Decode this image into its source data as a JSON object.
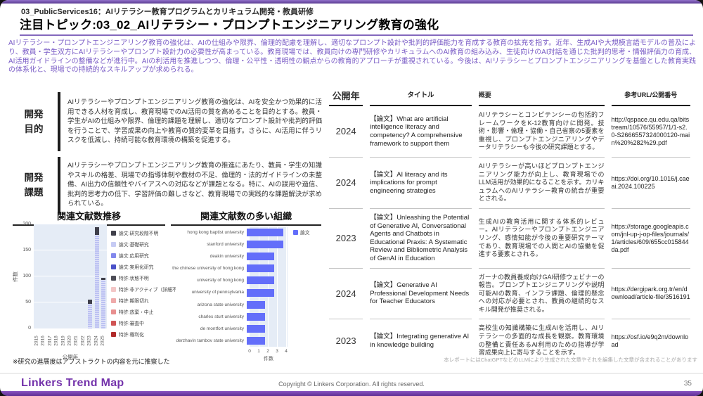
{
  "header": {
    "eyebrow": "03_PublicServices16：AIリテラシー教育プログラムとカリキュラム開発・教員研修",
    "title": "注目トピック:03_02_AIリテラシー・プロンプトエンジニアリング教育の強化"
  },
  "summary": "AIリテラシー・プロンプトエンジニアリング教育の強化は、AIの仕組みや限界、倫理的配慮を理解し、適切なプロンプト設計や批判的評価能力を育成する教育の拡充を指す。近年、生成AIや大規模言語モデルの普及により、教員・学生双方にAIリテラシーやプロンプト設計力の必要性が高まっている。教育現場では、教員向けの専門研修やカリキュラムへのAI教育の組み込み、生徒向けのAI対話を通じた批判的思考・情報評価力の育成、AI活用ガイドラインの整備などが進行中。AIの利活用を推進しつつ、倫理・公平性・透明性の観点からの教育的アプローチが重視されている。今後は、AIリテラシーとプロンプトエンジニアリングを基盤とした教育実践の体系化と、現場での持続的なスキルアップが求められる。",
  "dev_purpose": {
    "label_lines": [
      "開発",
      "目的"
    ],
    "text": "AIリテラシーやプロンプトエンジニアリング教育の強化は、AIを安全かつ効果的に活用できる人材を育成し、教育現場でのAI活用の質を高めることを目的とする。教員・学生がAIの仕組みや限界、倫理的課題を理解し、適切なプロンプト設計や批判的評価を行うことで、学習成果の向上や教育の質的変革を目指す。さらに、AI活用に伴うリスクを低減し、持続可能な教育環境の構築を促進する。"
  },
  "dev_issues": {
    "label_lines": [
      "開発",
      "課題"
    ],
    "text": "AIリテラシーやプロンプトエンジニアリング教育の推進にあたり、教員・学生の知識やスキルの格差、現場での指導体制や教材の不足、倫理的・法的ガイドラインの未整備、AI出力の信頼性やバイアスへの対応などが課題となる。特に、AIの誤用や過信、批判的思考力の低下、学習評価の難しさなど、教育現場での実践的な課題解決が求められている。"
  },
  "chart_data": [
    {
      "type": "bar",
      "stacked": true,
      "title": "関連文献数推移",
      "xlabel": "公開年",
      "ylabel": "件数",
      "categories": [
        "2015",
        "2016",
        "2017",
        "2018",
        "2019",
        "2020",
        "2021",
        "2022",
        "2023",
        "2024",
        "2025"
      ],
      "series": [
        {
          "name": "論文:基礎研究",
          "color": "#bcc2f2",
          "pattern": "dashed",
          "values": [
            0,
            0,
            0,
            0,
            0,
            0,
            0,
            0,
            47,
            180,
            93
          ]
        },
        {
          "name": "論文:研究段階不明",
          "color": "#3f3f4a",
          "pattern": "solid",
          "values": [
            0,
            0,
            0,
            0,
            0,
            0,
            0,
            0,
            8,
            15,
            4
          ]
        }
      ],
      "ylim": [
        0,
        200
      ],
      "yticks": [
        0,
        50,
        100,
        150,
        200
      ],
      "legend_entries": [
        {
          "label": "論文:研究段階不明",
          "color": "#3f3f4a"
        },
        {
          "label": "論文:基礎研究",
          "color": "#c6cbf4"
        },
        {
          "label": "論文:応用研究",
          "color": "#8288ec"
        },
        {
          "label": "論文:実用化研究",
          "color": "#4a51c8"
        },
        {
          "label": "特許:状態不明",
          "color": "#4d4d57"
        },
        {
          "label": "特許:非アクティブ（詳細不明）",
          "color": "#f3c6c6"
        },
        {
          "label": "特許:期限切れ",
          "color": "#efaaaa"
        },
        {
          "label": "特許:放棄・中止",
          "color": "#e88f8f"
        },
        {
          "label": "特許:審査中",
          "color": "#d05454"
        },
        {
          "label": "特許:権利化",
          "color": "#b02a2a"
        }
      ],
      "note": "※研究の進展度はアブストラクトの内容を元に推察した"
    },
    {
      "type": "horizontal-bar",
      "title": "関連文献数の多い組織",
      "xlabel": "件数",
      "categories": [
        "hong kong baptist university",
        "stanford university",
        "deakin university",
        "the chinese university of hong kong",
        "university of hong kong",
        "university of pennsylvania",
        "arizona state university",
        "charles sturt university",
        "de montfort university",
        "derzhavin tambov state university"
      ],
      "values": [
        4,
        4,
        3,
        3,
        3,
        3,
        2,
        2,
        2,
        2
      ],
      "xlim": [
        0,
        4
      ],
      "xticks": [
        0,
        1,
        2,
        3,
        4
      ],
      "bar_color": "#636efa",
      "legend_entries": [
        {
          "label": "論文",
          "color": "#636efa"
        }
      ]
    }
  ],
  "table": {
    "headers": [
      "公開年",
      "タイトル",
      "概要",
      "参考URL/公開番号"
    ],
    "rows": [
      {
        "year": "2024",
        "title": "【論文】What are artificial intelligence literacy and competency? A comprehensive framework to support them",
        "summary": "AIリテラシーとコンピテンシーの包括的フレームワークをK-12教育向けに開発。技術・影響・倫理・協働・自己省察の5要素を重視し、プロンプトエンジニアリングやデータリテラシーも今後の研究課題とする。",
        "url": "http://qspace.qu.edu.qa/bitstream/10576/55957/1/1-s2.0-S2666557324000120-main%20%282%29.pdf"
      },
      {
        "year": "2024",
        "title": "【論文】AI literacy and its implications for prompt engineering strategies",
        "summary": "AIリテラシーが高いほどプロンプトエンジニアリング能力が向上し、教育現場でのLLM活用が効果的になることを示す。カリキュラムへのAIリテラシー教育の統合が重要とされる。",
        "url": "https://doi.org/10.1016/j.caeai.2024.100225"
      },
      {
        "year": "2023",
        "title": "【論文】Unleashing the Potential of Generative AI, Conversational Agents and Chatbots in Educational Praxis: A Systematic Review and Bibliometric Analysis of GenAI in Education",
        "summary": "生成AIの教育活用に関する体系的レビュー。AIリテラシーやプロンプトエンジニアリング、感情知能が今後の重要研究テーマであり、教育現場での人間とAIの協働を促進する要素とされる。",
        "url": "https://storage.googleapis.com/jnl-up-j-op-files/journals/1/articles/609/655cc015844da.pdf"
      },
      {
        "year": "2024",
        "title": "【論文】Generative AI Professional Development Needs for Teacher Educators",
        "summary": "ガーナの教員養成向けGAI研修ウェビナーの報告。プロンプトエンジニアリングや説明可能AIの教育、インフラ課題、倫理的懸念への対応が必要とされ、教員の継続的なスキル開発が推奨される。",
        "url": "https://dergipark.org.tr/en/download/article-file/3516191"
      },
      {
        "year": "2023",
        "title": "【論文】Integrating generative AI in knowledge building",
        "summary": "高校生の知識構築に生成AIを活用し、AIリテラシーの多面的な成長を観察。教育環境の整備と責任あるAI利用のための指導が学習成果向上に寄与することを示す。",
        "url": "https://osf.io/e9q2m/download"
      }
    ],
    "note": "本レポートにはChatGPTなどのLLMにより生成された文章やそれを編集した文章が含まれることがあります"
  },
  "footer": {
    "logo": "Linkers Trend Map",
    "copyright": "Copyright © Linkers Corporation. All rights reserved.",
    "page_number": "35"
  }
}
